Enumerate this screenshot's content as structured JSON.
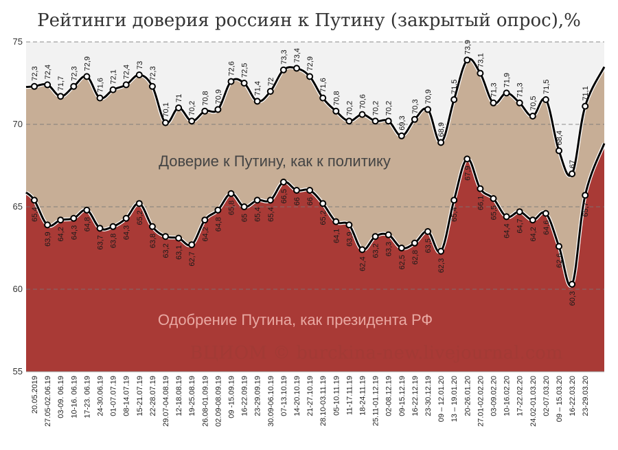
{
  "title": "Рейтинги доверия россиян к Путину (закрытый опрос),%",
  "watermark": "ВЦИОМ © burckina-new.livejournal.com",
  "chart_data": {
    "type": "area",
    "categories": [
      "20.05.2019",
      "27.05-02.06.19",
      "03-09. 06.19",
      "10-16. 06.19",
      "17-23. 06.19",
      "24-30.06.19",
      "01-07.07.19",
      "08-14.07.19",
      "15-21.07.19",
      "22-28.07.19",
      "29.07-04.08.19",
      "12-18.08.19",
      "19-25.08.19",
      "26.08-01.09.19",
      "02.09-08.09.19",
      "09 -15.09.19",
      "16-22.09.19",
      "23-29.09.19",
      "30.09-06.10.19",
      "07-13.10.19",
      "14-20.10.19",
      "21-27.10.19",
      "28.10-03.11.19",
      "05-10.11.19",
      "11-17.11.19",
      "18-24.11.19",
      "25.11-01.12.19",
      "02-08.12.19",
      "09-15.12.19",
      "16-22.12.19",
      "23-30.12.19",
      "09 – 12.01.20",
      "13 – 19.01.20",
      "20-26.01.20",
      "27.01-02.02.20",
      "03-09.02.20",
      "10-16.02.20",
      "17-22.02.20",
      "24.02-01.03.20",
      "02-07.03.20",
      "09 – 15.03.20",
      "16-22.03.20",
      "23-29.03.20"
    ],
    "series": [
      {
        "name": "Доверие к Путину, как к политику",
        "color": "#c7ae96",
        "values": [
          72.3,
          72.4,
          71.7,
          72.3,
          72.9,
          71.6,
          72.1,
          72.4,
          73,
          72.3,
          70.1,
          71,
          70.2,
          70.8,
          70.9,
          72.6,
          72.5,
          71.4,
          72,
          73.3,
          73.4,
          72.9,
          71.6,
          70.8,
          70.2,
          70.6,
          70.2,
          70.2,
          69.3,
          70.3,
          70.9,
          68.9,
          71.5,
          73.9,
          73.1,
          71.3,
          71.9,
          71.3,
          70.5,
          71.5,
          68.4,
          67,
          71.1
        ]
      },
      {
        "name": "Одобрение Путина, как президента РФ",
        "color": "#a93a36",
        "values": [
          65.4,
          63.9,
          64.2,
          64.3,
          64.8,
          63.7,
          63.8,
          64.3,
          65.2,
          63.8,
          63.2,
          63.1,
          62.7,
          64.2,
          64.8,
          65.8,
          65,
          65.4,
          65.4,
          66.5,
          66,
          66,
          65.2,
          64.1,
          63.9,
          62.4,
          63.2,
          63.3,
          62.5,
          62.8,
          63.5,
          62.3,
          65.4,
          67.9,
          66.1,
          65.5,
          64.4,
          64.7,
          64.2,
          64.6,
          62.6,
          60.3,
          65.7
        ]
      }
    ],
    "yticks": [
      55,
      60,
      65,
      70,
      75
    ],
    "ylim": [
      55,
      75
    ],
    "grid": "horizontal-dashed"
  }
}
